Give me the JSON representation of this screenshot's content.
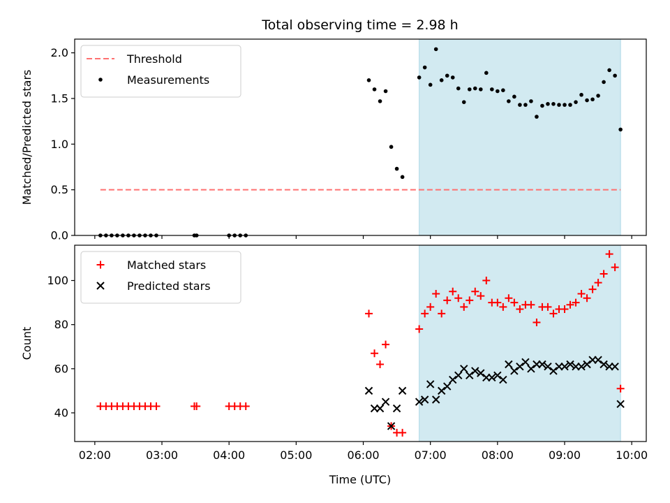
{
  "figure": {
    "title": "Total observing time = 2.98 h",
    "xlabel": "Time (UTC)"
  },
  "colors": {
    "threshold": "#ff7070",
    "measurement": "#000000",
    "matched": "#ff0000",
    "predicted": "#000000",
    "shade": "#add8e6"
  },
  "chart_data": [
    {
      "type": "scatter",
      "panel": "top",
      "ylabel": "Matched/Predicted stars",
      "ylim": [
        0,
        2.15
      ],
      "yticks": [
        0.0,
        0.5,
        1.0,
        1.5,
        2.0
      ],
      "ytick_labels": [
        "0.0",
        "0.5",
        "1.0",
        "1.5",
        "2.0"
      ],
      "xlim": [
        "01:42",
        "10:13"
      ],
      "xticks": [
        "02:00",
        "03:00",
        "04:00",
        "05:00",
        "06:00",
        "07:00",
        "08:00",
        "09:00",
        "10:00"
      ],
      "shaded_region": [
        "06:50",
        "09:50"
      ],
      "legend": "top-left",
      "threshold": {
        "name": "Threshold",
        "y": 0.5,
        "x_range": [
          "02:05",
          "09:50"
        ]
      },
      "series": [
        {
          "name": "Measurements",
          "x": [
            "02:05",
            "02:10",
            "02:15",
            "02:20",
            "02:25",
            "02:30",
            "02:35",
            "02:40",
            "02:45",
            "02:50",
            "02:55",
            "03:29",
            "03:31",
            "04:00",
            "04:05",
            "04:10",
            "04:15",
            "06:05",
            "06:10",
            "06:15",
            "06:20",
            "06:25",
            "06:30",
            "06:35",
            "06:50",
            "06:55",
            "07:00",
            "07:05",
            "07:10",
            "07:15",
            "07:20",
            "07:25",
            "07:30",
            "07:35",
            "07:40",
            "07:45",
            "07:50",
            "07:55",
            "08:00",
            "08:05",
            "08:10",
            "08:15",
            "08:20",
            "08:25",
            "08:30",
            "08:35",
            "08:40",
            "08:45",
            "08:50",
            "08:55",
            "09:00",
            "09:05",
            "09:10",
            "09:15",
            "09:20",
            "09:25",
            "09:30",
            "09:35",
            "09:40",
            "09:45",
            "09:50"
          ],
          "y": [
            0,
            0,
            0,
            0,
            0,
            0,
            0,
            0,
            0,
            0,
            0,
            0,
            0,
            0,
            0,
            0,
            0,
            1.7,
            1.6,
            1.47,
            1.58,
            0.97,
            0.73,
            0.64,
            1.73,
            1.84,
            1.65,
            2.04,
            1.7,
            1.75,
            1.73,
            1.61,
            1.46,
            1.6,
            1.61,
            1.6,
            1.78,
            1.6,
            1.58,
            1.59,
            1.47,
            1.52,
            1.43,
            1.43,
            1.47,
            1.3,
            1.42,
            1.44,
            1.44,
            1.43,
            1.43,
            1.43,
            1.46,
            1.54,
            1.48,
            1.49,
            1.53,
            1.68,
            1.81,
            1.75,
            1.16
          ]
        }
      ]
    },
    {
      "type": "scatter",
      "panel": "bottom",
      "ylabel": "Count",
      "ylim": [
        27,
        116
      ],
      "yticks": [
        40,
        60,
        80,
        100
      ],
      "ytick_labels": [
        "40",
        "60",
        "80",
        "100"
      ],
      "xlim": [
        "01:42",
        "10:13"
      ],
      "xticks": [
        "02:00",
        "03:00",
        "04:00",
        "05:00",
        "06:00",
        "07:00",
        "08:00",
        "09:00",
        "10:00"
      ],
      "xtick_labels": [
        "02:00",
        "03:00",
        "04:00",
        "05:00",
        "06:00",
        "07:00",
        "08:00",
        "09:00",
        "10:00"
      ],
      "shaded_region": [
        "06:50",
        "09:50"
      ],
      "legend": "top-left",
      "series": [
        {
          "name": "Matched stars",
          "marker": "plus",
          "x": [
            "02:05",
            "02:10",
            "02:15",
            "02:20",
            "02:25",
            "02:30",
            "02:35",
            "02:40",
            "02:45",
            "02:50",
            "02:55",
            "03:29",
            "03:31",
            "04:00",
            "04:05",
            "04:10",
            "04:15",
            "06:05",
            "06:10",
            "06:15",
            "06:20",
            "06:25",
            "06:30",
            "06:35",
            "06:50",
            "06:55",
            "07:00",
            "07:05",
            "07:10",
            "07:15",
            "07:20",
            "07:25",
            "07:30",
            "07:35",
            "07:40",
            "07:45",
            "07:50",
            "07:55",
            "08:00",
            "08:05",
            "08:10",
            "08:15",
            "08:20",
            "08:25",
            "08:30",
            "08:35",
            "08:40",
            "08:45",
            "08:50",
            "08:55",
            "09:00",
            "09:05",
            "09:10",
            "09:15",
            "09:20",
            "09:25",
            "09:30",
            "09:35",
            "09:40",
            "09:45",
            "09:50"
          ],
          "y": [
            43,
            43,
            43,
            43,
            43,
            43,
            43,
            43,
            43,
            43,
            43,
            43,
            43,
            43,
            43,
            43,
            43,
            85,
            67,
            62,
            71,
            34,
            31,
            31,
            78,
            85,
            88,
            94,
            85,
            91,
            95,
            92,
            88,
            91,
            95,
            93,
            100,
            90,
            90,
            88,
            92,
            90,
            87,
            89,
            89,
            81,
            88,
            88,
            85,
            87,
            87,
            89,
            90,
            94,
            92,
            96,
            99,
            103,
            112,
            106,
            51
          ]
        },
        {
          "name": "Predicted stars",
          "marker": "x",
          "x": [
            "06:05",
            "06:10",
            "06:15",
            "06:20",
            "06:25",
            "06:30",
            "06:35",
            "06:50",
            "06:55",
            "07:00",
            "07:05",
            "07:10",
            "07:15",
            "07:20",
            "07:25",
            "07:30",
            "07:35",
            "07:40",
            "07:45",
            "07:50",
            "07:55",
            "08:00",
            "08:05",
            "08:10",
            "08:15",
            "08:20",
            "08:25",
            "08:30",
            "08:35",
            "08:40",
            "08:45",
            "08:50",
            "08:55",
            "09:00",
            "09:05",
            "09:10",
            "09:15",
            "09:20",
            "09:25",
            "09:30",
            "09:35",
            "09:40",
            "09:45",
            "09:50"
          ],
          "y": [
            50,
            42,
            42,
            45,
            34,
            42,
            50,
            45,
            46,
            53,
            46,
            50,
            52,
            55,
            57,
            60,
            57,
            59,
            58,
            56,
            56,
            57,
            55,
            62,
            59,
            61,
            63,
            60,
            62,
            62,
            61,
            59,
            61,
            61,
            62,
            61,
            61,
            62,
            64,
            64,
            62,
            61,
            61,
            44
          ]
        }
      ]
    }
  ]
}
